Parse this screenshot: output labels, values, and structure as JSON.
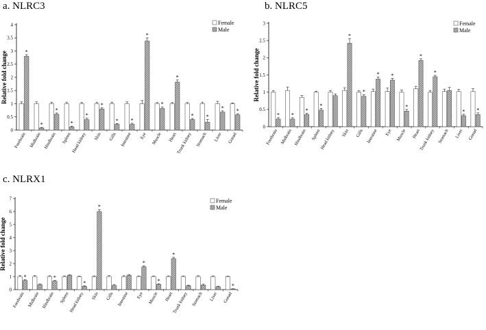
{
  "chart_data": [
    {
      "panel": "a.",
      "title": "NLRC3",
      "type": "bar",
      "ylabel": "Relative fold change",
      "ylim": [
        0,
        4
      ],
      "yticks": [
        "0",
        "0.5",
        "1",
        "1.5",
        "2",
        "2.5",
        "3",
        "3.5",
        "4"
      ],
      "categories": [
        "Forebrain",
        "Midbrain",
        "Hindbrain",
        "Spleen",
        "Head kidney",
        "Skin",
        "Gills",
        "Intestine",
        "Eye",
        "Muscle",
        "Heart",
        "Trunk kidney",
        "Stomach",
        "Liver",
        "Gonad"
      ],
      "series": [
        {
          "name": "Female",
          "values": [
            1.0,
            1.0,
            1.0,
            1.0,
            1.0,
            1.0,
            1.0,
            1.0,
            1.0,
            1.0,
            1.0,
            1.0,
            1.0,
            1.0,
            1.0
          ],
          "errors": [
            0.07,
            0.07,
            0.06,
            0.06,
            0.05,
            0.06,
            0.06,
            0.07,
            0.12,
            0.05,
            0.05,
            0.05,
            0.06,
            0.09,
            0.03
          ]
        },
        {
          "name": "Male",
          "values": [
            2.8,
            0.08,
            0.6,
            0.12,
            0.4,
            0.8,
            0.22,
            0.22,
            3.38,
            0.82,
            1.82,
            0.4,
            0.3,
            0.68,
            0.58
          ],
          "errors": [
            0.06,
            0.02,
            0.05,
            0.03,
            0.05,
            0.05,
            0.03,
            0.04,
            0.12,
            0.06,
            0.08,
            0.04,
            0.1,
            0.05,
            0.04
          ]
        }
      ],
      "significance_marks": [
        {
          "category": "Forebrain",
          "label": "*"
        },
        {
          "category": "Midbrain",
          "label": "*"
        },
        {
          "category": "Hindbrain",
          "label": "*"
        },
        {
          "category": "Spleen",
          "label": "*"
        },
        {
          "category": "Head kidney",
          "label": "*"
        },
        {
          "category": "Skin",
          "label": "*"
        },
        {
          "category": "Gills",
          "label": "*"
        },
        {
          "category": "Intestine",
          "label": "*"
        },
        {
          "category": "Eye",
          "label": "*"
        },
        {
          "category": "Muscle",
          "label": "*"
        },
        {
          "category": "Heart",
          "label": "*"
        },
        {
          "category": "Trunk kidney",
          "label": "*"
        },
        {
          "category": "Stomach",
          "label": "*"
        },
        {
          "category": "Liver",
          "label": "*"
        },
        {
          "category": "Gonad",
          "label": "*"
        }
      ],
      "legend": "top-right",
      "grid": false
    },
    {
      "panel": "b.",
      "title": "NLRC5",
      "type": "bar",
      "ylabel": "Relative  fold change",
      "ylim": [
        0,
        3
      ],
      "yticks": [
        "0",
        "0.5",
        "1",
        "1.5",
        "2",
        "2.5",
        "3"
      ],
      "categories": [
        "Forebrain",
        "Midbrain",
        "Hindbrain",
        "Spleen",
        "Head kidney",
        "Skin",
        "Gills",
        "Intestine",
        "Eye",
        "Muscle",
        "Heart",
        "Trunk kidney",
        "Stomach",
        "Liver",
        "Gonad"
      ],
      "series": [
        {
          "name": "Female",
          "values": [
            1.0,
            1.05,
            0.85,
            1.0,
            1.0,
            1.05,
            1.0,
            1.02,
            1.02,
            1.0,
            1.1,
            1.0,
            1.02,
            1.02,
            1.02
          ],
          "errors": [
            0.04,
            0.1,
            0.05,
            0.03,
            0.05,
            0.08,
            0.04,
            0.07,
            0.1,
            0.06,
            0.07,
            0.05,
            0.07,
            0.06,
            0.08
          ]
        },
        {
          "name": "Male",
          "values": [
            0.22,
            0.22,
            0.35,
            0.48,
            0.9,
            2.42,
            0.88,
            1.38,
            1.35,
            0.45,
            1.92,
            1.45,
            1.05,
            0.32,
            0.35
          ],
          "errors": [
            0.04,
            0.04,
            0.04,
            0.05,
            0.05,
            0.13,
            0.05,
            0.06,
            0.05,
            0.05,
            0.05,
            0.04,
            0.09,
            0.04,
            0.05
          ]
        }
      ],
      "significance_marks": [
        {
          "category": "Forebrain",
          "label": "*"
        },
        {
          "category": "Midbrain",
          "label": "*"
        },
        {
          "category": "Hindbrain",
          "label": "*"
        },
        {
          "category": "Spleen",
          "label": "*"
        },
        {
          "category": "Skin",
          "label": "*"
        },
        {
          "category": "Gills",
          "label": "*"
        },
        {
          "category": "Intestine",
          "label": "*"
        },
        {
          "category": "Eye",
          "label": "*"
        },
        {
          "category": "Muscle",
          "label": "*"
        },
        {
          "category": "Heart",
          "label": "*"
        },
        {
          "category": "Trunk kidney",
          "label": "*"
        },
        {
          "category": "Liver",
          "label": "*"
        },
        {
          "category": "Gonad",
          "label": "*"
        }
      ],
      "legend": "top-right",
      "grid": false
    },
    {
      "panel": "c.",
      "title": "NLRX1",
      "type": "bar",
      "ylabel": "Relative fold change",
      "ylim": [
        0,
        7
      ],
      "yticks": [
        "0",
        "1",
        "2",
        "3",
        "4",
        "5",
        "6",
        "7"
      ],
      "categories": [
        "Forebrain",
        "Midbrain",
        "Hindbrain",
        "Spleen",
        "Head kidney",
        "Skin",
        "Gills",
        "Intestine",
        "Eye",
        "Muscle",
        "Heart",
        "Trunk kidney",
        "Stomach",
        "Liver",
        "Gonad"
      ],
      "series": [
        {
          "name": "Female",
          "values": [
            1.0,
            1.0,
            1.0,
            1.0,
            1.0,
            1.0,
            1.0,
            1.0,
            1.0,
            1.0,
            1.0,
            1.0,
            1.0,
            1.0,
            1.0
          ],
          "errors": [
            0.07,
            0.08,
            0.06,
            0.05,
            0.04,
            0.05,
            0.07,
            0.06,
            0.05,
            0.05,
            0.05,
            0.05,
            0.06,
            0.05,
            0.04
          ]
        },
        {
          "name": "Male",
          "values": [
            0.7,
            0.38,
            0.65,
            1.1,
            0.25,
            6.0,
            0.32,
            1.1,
            1.75,
            0.4,
            2.38,
            0.3,
            0.35,
            0.22,
            0.05
          ],
          "errors": [
            0.06,
            0.05,
            0.05,
            0.05,
            0.04,
            0.15,
            0.06,
            0.05,
            0.08,
            0.06,
            0.1,
            0.05,
            0.07,
            0.04,
            0.02
          ]
        }
      ],
      "significance_marks": [
        {
          "category": "Forebrain",
          "label": "*"
        },
        {
          "category": "Hindbrain",
          "label": "*"
        },
        {
          "category": "Head kidney",
          "label": "*"
        },
        {
          "category": "Skin",
          "label": "*"
        },
        {
          "category": "Eye",
          "label": "*"
        },
        {
          "category": "Muscle",
          "label": "*"
        },
        {
          "category": "Heart",
          "label": "*"
        },
        {
          "category": "Gonad",
          "label": "*"
        }
      ],
      "legend": "top-right",
      "grid": false
    }
  ],
  "colors": {
    "female_fill": "#ffffff",
    "male_fill": "#b3b3b3",
    "bar_stroke": "#555555",
    "axis": "#000000"
  }
}
